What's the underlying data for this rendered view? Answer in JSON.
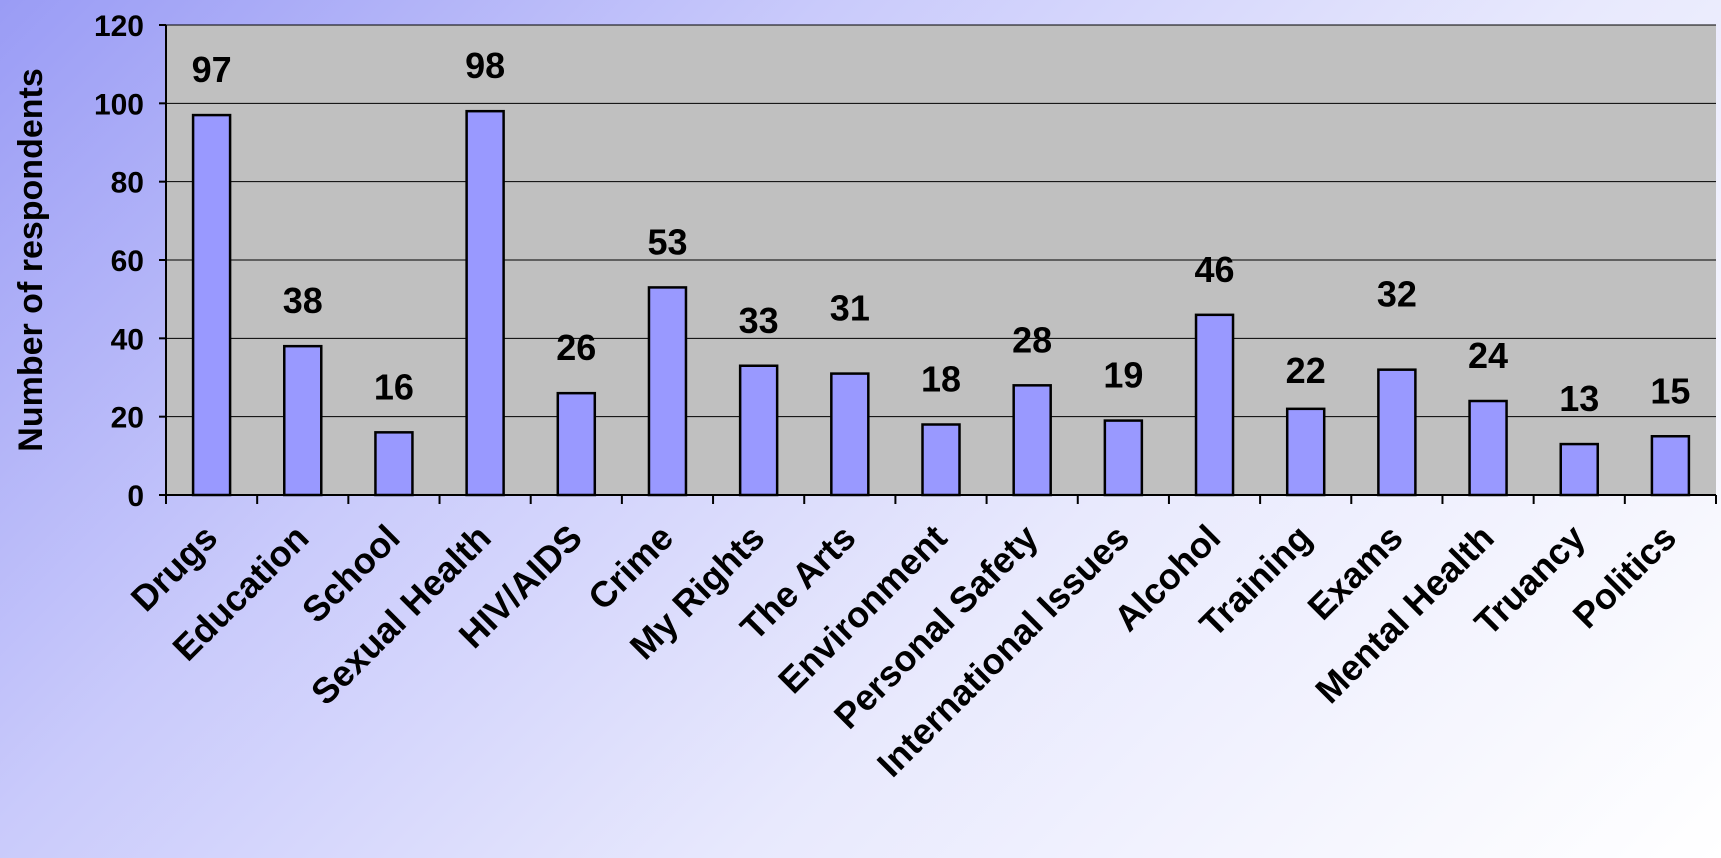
{
  "chart_data": {
    "type": "bar",
    "title": "",
    "xlabel": "",
    "ylabel": "Number of respondents",
    "ylim": [
      0,
      120
    ],
    "yticks": [
      0,
      20,
      40,
      60,
      80,
      100,
      120
    ],
    "grid": true,
    "categories": [
      "Drugs",
      "Education",
      "School",
      "Sexual Health",
      "HIV/AIDS",
      "Crime",
      "My Rights",
      "The Arts",
      "Environment",
      "Personal Safety",
      "International Issues",
      "Alcohol",
      "Training",
      "Exams",
      "Mental Health",
      "Truancy",
      "Politics"
    ],
    "values": [
      97,
      38,
      16,
      98,
      26,
      53,
      33,
      31,
      18,
      28,
      19,
      46,
      22,
      32,
      24,
      13,
      15
    ],
    "data_labels": [
      "97",
      "38",
      "16",
      "98",
      "26",
      "53",
      "33",
      "31",
      "18",
      "28",
      "19",
      "46",
      "22",
      "32",
      "24",
      "13",
      "15"
    ],
    "colors": {
      "bar_fill": "#9999ff",
      "bar_stroke": "#000000",
      "plot_background": "#c0c0c0",
      "gridline": "#000000"
    }
  }
}
